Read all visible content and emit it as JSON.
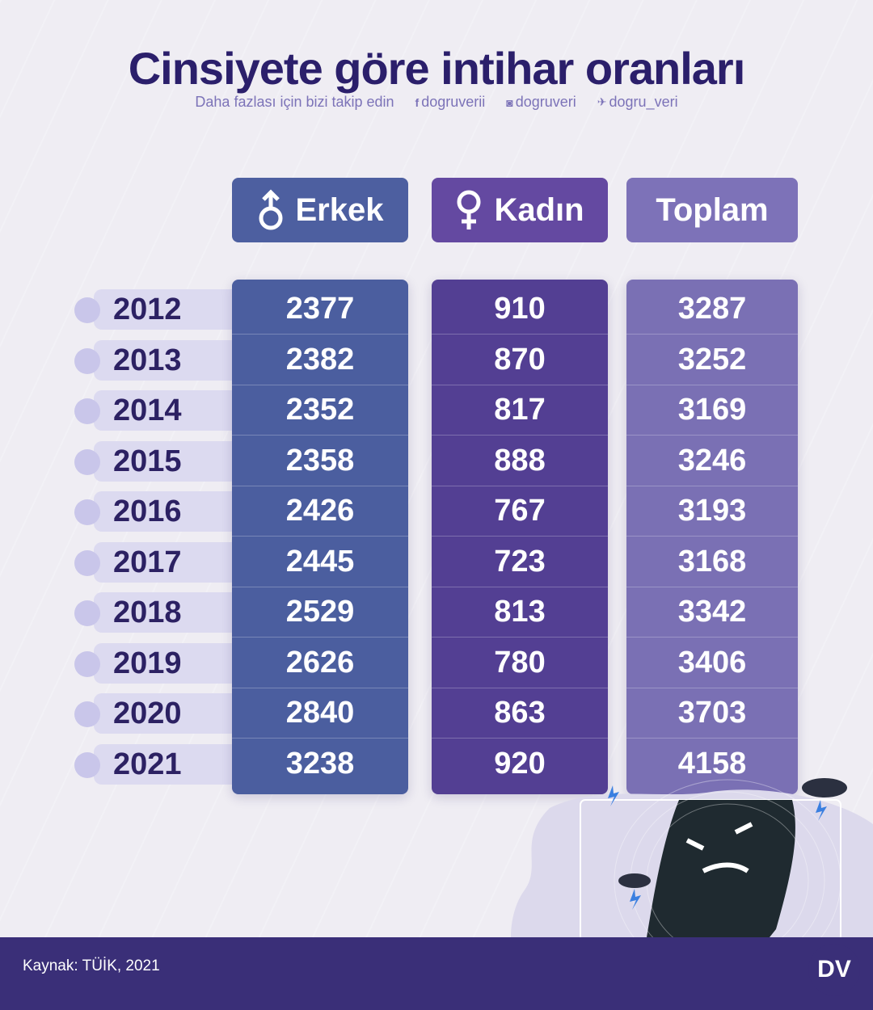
{
  "title": "Cinsiyete göre intihar oranları",
  "follow": {
    "text": "Daha fazlası için bizi takip edin",
    "facebook": "dogruverii",
    "instagram": "dogruveri",
    "twitter": "dogru_veri"
  },
  "headers": {
    "male": "Erkek",
    "female": "Kadın",
    "total": "Toplam"
  },
  "rows": [
    {
      "year": "2012",
      "male": "2377",
      "female": "910",
      "total": "3287"
    },
    {
      "year": "2013",
      "male": "2382",
      "female": "870",
      "total": "3252"
    },
    {
      "year": "2014",
      "male": "2352",
      "female": "817",
      "total": "3169"
    },
    {
      "year": "2015",
      "male": "2358",
      "female": "888",
      "total": "3246"
    },
    {
      "year": "2016",
      "male": "2426",
      "female": "767",
      "total": "3193"
    },
    {
      "year": "2017",
      "male": "2445",
      "female": "723",
      "total": "3168"
    },
    {
      "year": "2018",
      "male": "2529",
      "female": "813",
      "total": "3342"
    },
    {
      "year": "2019",
      "male": "2626",
      "female": "780",
      "total": "3406"
    },
    {
      "year": "2020",
      "male": "2840",
      "female": "863",
      "total": "3703"
    },
    {
      "year": "2021",
      "male": "3238",
      "female": "920",
      "total": "4158"
    }
  ],
  "source": "Kaynak: TÜİK, 2021",
  "logo_text": "DV",
  "colors": {
    "male": "#4b5e9f",
    "female": "#533f93",
    "total": "#7a70b4",
    "footer": "#3a2f78",
    "title": "#2b1f6b"
  }
}
